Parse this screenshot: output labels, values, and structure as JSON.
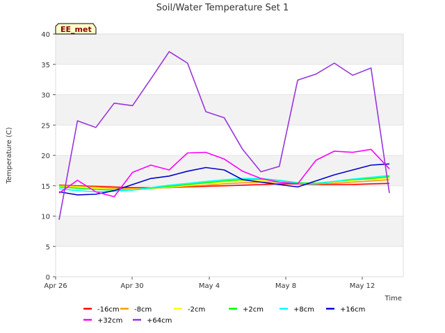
{
  "chart_data": {
    "type": "line",
    "title": "Soil/Water Temperature Set 1",
    "xlabel": "Time",
    "ylabel": "Temperature (C)",
    "badge": "EE_met",
    "ylim": [
      0,
      40
    ],
    "yticks": [
      "0",
      "5",
      "10",
      "15",
      "20",
      "25",
      "30",
      "35",
      "40"
    ],
    "xlim": [
      "Apr 26",
      "May 14"
    ],
    "xticks": [
      "Apr 26",
      "Apr 30",
      "May 4",
      "May 8",
      "May 12"
    ],
    "grid": "horizontal bands",
    "legend_position": "bottom",
    "series": [
      {
        "name": "-16cm",
        "color": "#ff0000",
        "values": [
          15.1,
          15.0,
          14.9,
          14.8,
          14.7,
          14.7,
          14.7,
          14.8,
          14.9,
          15.0,
          15.1,
          15.2,
          15.3,
          15.3,
          15.2,
          15.2,
          15.2,
          15.3,
          15.4
        ]
      },
      {
        "name": "-8cm",
        "color": "#ff9900",
        "values": [
          15.0,
          14.9,
          14.8,
          14.6,
          14.5,
          14.6,
          14.7,
          14.9,
          15.1,
          15.3,
          15.5,
          15.6,
          15.6,
          15.4,
          15.3,
          15.4,
          15.6,
          15.8,
          16.0
        ]
      },
      {
        "name": "-2cm",
        "color": "#ffff00",
        "values": [
          14.9,
          14.8,
          14.6,
          14.4,
          14.4,
          14.6,
          14.8,
          15.1,
          15.4,
          15.6,
          15.8,
          15.9,
          15.8,
          15.5,
          15.4,
          15.6,
          15.9,
          16.1,
          16.3
        ]
      },
      {
        "name": "+2cm",
        "color": "#00ff00",
        "values": [
          14.8,
          14.6,
          14.4,
          14.3,
          14.3,
          14.6,
          14.9,
          15.2,
          15.5,
          15.8,
          16.0,
          16.1,
          15.9,
          15.5,
          15.4,
          15.7,
          16.0,
          16.2,
          16.5
        ]
      },
      {
        "name": "+8cm",
        "color": "#00ffff",
        "values": [
          14.5,
          14.2,
          14.0,
          14.1,
          14.3,
          14.7,
          15.1,
          15.4,
          15.7,
          16.0,
          16.2,
          16.2,
          15.9,
          15.4,
          15.3,
          15.7,
          16.1,
          16.4,
          16.7
        ]
      },
      {
        "name": "+16cm",
        "color": "#0000cc",
        "values": [
          14.0,
          13.5,
          13.6,
          14.2,
          15.2,
          16.2,
          16.6,
          17.4,
          18.0,
          17.6,
          16.0,
          15.6,
          15.2,
          14.8,
          15.8,
          16.8,
          17.6,
          18.4,
          18.6
        ]
      },
      {
        "name": "+32cm",
        "color": "#ff00ff",
        "values": [
          13.8,
          15.9,
          14.0,
          13.2,
          17.2,
          18.4,
          17.6,
          20.4,
          20.5,
          19.4,
          17.4,
          16.2,
          15.6,
          15.3,
          19.2,
          20.7,
          20.5,
          21.0,
          17.8
        ]
      },
      {
        "name": "+64cm",
        "color": "#9933dd",
        "values": [
          9.4,
          25.7,
          24.6,
          28.6,
          28.2,
          32.6,
          37.1,
          35.2,
          27.2,
          26.2,
          21.0,
          17.3,
          18.2,
          32.4,
          33.4,
          35.2,
          33.2,
          34.4,
          13.8
        ]
      }
    ]
  }
}
